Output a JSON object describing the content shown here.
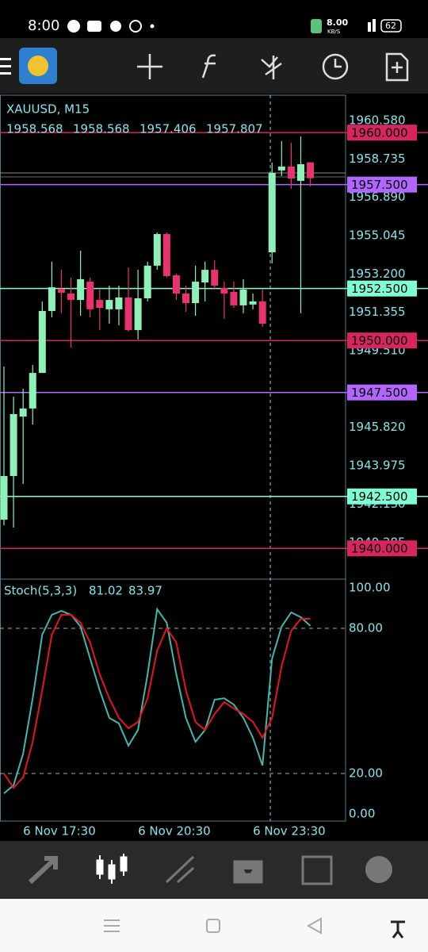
{
  "status_bar": {
    "time": "8:00",
    "speed": "8.00",
    "speed_unit": "KB/S",
    "battery": "62"
  },
  "chart_data": [
    {
      "type": "candlestick",
      "title": "XAUUSD, M15",
      "categories": [
        null,
        null,
        "6 Nov 17:30",
        null,
        null,
        null,
        null,
        null,
        null,
        null,
        null,
        null,
        null,
        null,
        "6 Nov 20:30",
        null,
        null,
        null,
        null,
        null,
        null,
        null,
        null,
        null,
        null,
        null,
        "6 Nov 23:30",
        null,
        null,
        null,
        null,
        null,
        null
      ],
      "open": [
        1941.38,
        1943.48,
        1946.34,
        1946.73,
        1948.44,
        1951.42,
        1952.49,
        1952.26,
        1951.95,
        1952.83,
        1951.95,
        1951.5,
        1951.5,
        1952.07,
        1950.5,
        1952.03,
        1953.6,
        1955.12,
        1953.14,
        1952.26,
        1951.8,
        1952.79,
        1953.4,
        1952.53,
        1952.34,
        1951.69,
        1951.73,
        1951.88,
        1954.24,
        1958.18,
        1958.37,
        1957.68,
        1958.568
      ],
      "high": [
        1948.75,
        1947.3,
        1947.68,
        1948.82,
        1951.88,
        1953.79,
        1953.4,
        1953.02,
        1954.32,
        1953.02,
        1952.45,
        1952.64,
        1952.64,
        1953.52,
        1953.4,
        1953.79,
        1955.2,
        1955.2,
        1953.21,
        1952.64,
        1953.6,
        1953.79,
        1953.86,
        1952.83,
        1952.83,
        1952.95,
        1952.26,
        1952.45,
        1958.56,
        1959.59,
        1959.51,
        1959.82,
        1958.568
      ],
      "low": [
        1941.11,
        1941.0,
        1943.1,
        1945.96,
        1948.44,
        1951.11,
        1951.31,
        1949.66,
        1951.19,
        1951.11,
        1950.5,
        1950.81,
        1950.73,
        1950.43,
        1950.05,
        1951.88,
        1953.4,
        1953.02,
        1951.95,
        1951.38,
        1951.19,
        1951.88,
        1952.45,
        1951.04,
        1951.57,
        1951.31,
        1951.5,
        1950.66,
        1953.71,
        1957.91,
        1957.3,
        1951.31,
        1957.406
      ],
      "close": [
        1943.48,
        1946.46,
        1946.73,
        1948.44,
        1951.42,
        1952.56,
        1952.3,
        1951.95,
        1952.95,
        1951.5,
        1951.57,
        1951.95,
        1952.07,
        1950.5,
        1952.03,
        1953.6,
        1955.12,
        1953.1,
        1952.26,
        1951.8,
        1952.83,
        1953.4,
        1952.64,
        1952.26,
        1951.69,
        1952.45,
        1951.88,
        1950.81,
        1958.06,
        1958.37,
        1957.79,
        1958.48,
        1957.807
      ],
      "up_color": "#8ff0b8",
      "down_color": "#e8336f",
      "ylim": [
        1938.52,
        1961.8
      ],
      "yticks": [
        {
          "value": 1960.58,
          "label": "1960.580"
        },
        1958.735,
        {
          "value": 1956.89,
          "label": "1956.890"
        },
        1955.045,
        {
          "value": 1953.2,
          "label": "1953.200"
        },
        1951.355,
        {
          "value": 1949.51,
          "label": "1949.510"
        },
        {
          "value": 1945.82,
          "label": "1945.820"
        },
        1943.975,
        {
          "value": 1942.13,
          "label": "1942.130"
        },
        1940.285
      ],
      "levels": [
        {
          "value": 1960.0,
          "label": "1960.000",
          "color": "#d7265f"
        },
        {
          "value": 1957.5,
          "label": "1957.500",
          "color": "#b266ff"
        },
        {
          "value": 1952.5,
          "label": "1952.500",
          "color": "#7fffd4"
        },
        {
          "value": 1950.0,
          "label": "1950.000",
          "color": "#d7265f"
        },
        {
          "value": 1947.5,
          "label": "1947.500",
          "color": "#b266ff"
        },
        {
          "value": 1942.5,
          "label": "1942.500",
          "color": "#7fffd4"
        },
        {
          "value": 1940.0,
          "label": "1940.000",
          "color": "#d7265f"
        }
      ]
    },
    {
      "type": "line",
      "title": "Stoch(5,3,3)",
      "series": [
        {
          "color": "#40b8b0",
          "values": [
            11.8,
            15.1,
            28.2,
            51.1,
            77.4,
            85.6,
            87.2,
            85.6,
            80.7,
            67.5,
            54.4,
            43.0,
            40.7,
            31.5,
            38.0,
            61.0,
            87.9,
            82.3,
            61.0,
            43.0,
            33.1,
            38.0,
            50.5,
            51.1,
            48.5,
            43.0,
            34.8,
            23.3,
            67.5,
            80.7,
            86.6,
            84.6,
            81.02
          ]
        },
        {
          "color": "#e8141e",
          "values": [
            20.0,
            14.1,
            18.4,
            33.1,
            54.4,
            77.4,
            85.6,
            85.6,
            82.3,
            74.1,
            61.0,
            51.1,
            43.0,
            38.7,
            41.3,
            51.1,
            70.8,
            80.0,
            74.1,
            54.4,
            41.3,
            38.0,
            44.6,
            49.5,
            46.9,
            44.6,
            41.3,
            34.8,
            43.0,
            64.3,
            79.0,
            83.9,
            83.97
          ]
        }
      ],
      "ylim": [
        0,
        100
      ],
      "yticks": [
        {
          "value": 100,
          "label": "100.00"
        },
        {
          "value": 80,
          "label": "80.00"
        },
        {
          "value": 20,
          "label": "20.00"
        },
        {
          "value": 0,
          "label": "0.00"
        }
      ],
      "grid": "dashed"
    }
  ]
}
